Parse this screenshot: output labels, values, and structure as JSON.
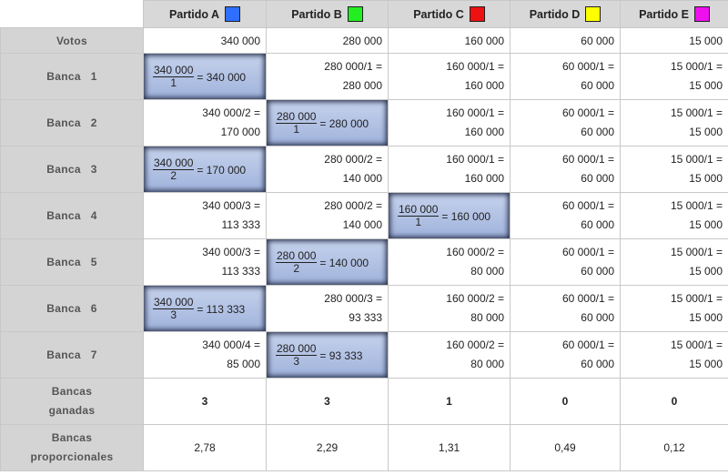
{
  "parties": [
    {
      "name": "Partido A",
      "color": "#2f6fff"
    },
    {
      "name": "Partido B",
      "color": "#22ee22"
    },
    {
      "name": "Partido C",
      "color": "#ee1111"
    },
    {
      "name": "Partido D",
      "color": "#ffff00"
    },
    {
      "name": "Partido E",
      "color": "#ee11ee"
    }
  ],
  "votes_label": "Votos",
  "votes": [
    "340 000",
    "280 000",
    "160 000",
    "60 000",
    "15 000"
  ],
  "rows": [
    {
      "label": "Banca   1",
      "cells": [
        {
          "win": true,
          "num": "340 000",
          "den": "1",
          "result": "= 340 000"
        },
        {
          "l1": "280 000/1 =",
          "l2": "280 000"
        },
        {
          "l1": "160 000/1 =",
          "l2": "160 000"
        },
        {
          "l1": "60 000/1 =",
          "l2": "60 000"
        },
        {
          "l1": "15 000/1 =",
          "l2": "15 000"
        }
      ]
    },
    {
      "label": "Banca   2",
      "cells": [
        {
          "l1": "340 000/2 =",
          "l2": "170 000"
        },
        {
          "win": true,
          "num": "280 000",
          "den": "1",
          "result": "= 280 000"
        },
        {
          "l1": "160 000/1 =",
          "l2": "160 000"
        },
        {
          "l1": "60 000/1 =",
          "l2": "60 000"
        },
        {
          "l1": "15 000/1 =",
          "l2": "15 000"
        }
      ]
    },
    {
      "label": "Banca   3",
      "cells": [
        {
          "win": true,
          "num": "340 000",
          "den": "2",
          "result": "= 170 000"
        },
        {
          "l1": "280 000/2 =",
          "l2": "140 000"
        },
        {
          "l1": "160 000/1 =",
          "l2": "160 000"
        },
        {
          "l1": "60 000/1 =",
          "l2": "60 000"
        },
        {
          "l1": "15 000/1 =",
          "l2": "15 000"
        }
      ]
    },
    {
      "label": "Banca   4",
      "cells": [
        {
          "l1": "340 000/3 =",
          "l2": "113 333"
        },
        {
          "l1": "280 000/2 =",
          "l2": "140 000"
        },
        {
          "win": true,
          "num": "160 000",
          "den": "1",
          "result": "= 160 000"
        },
        {
          "l1": "60 000/1 =",
          "l2": "60 000"
        },
        {
          "l1": "15 000/1 =",
          "l2": "15 000"
        }
      ]
    },
    {
      "label": "Banca   5",
      "cells": [
        {
          "l1": "340 000/3 =",
          "l2": "113 333"
        },
        {
          "win": true,
          "num": "280 000",
          "den": "2",
          "result": "= 140 000"
        },
        {
          "l1": "160 000/2 =",
          "l2": "80 000"
        },
        {
          "l1": "60 000/1 =",
          "l2": "60 000"
        },
        {
          "l1": "15 000/1 =",
          "l2": "15 000"
        }
      ]
    },
    {
      "label": "Banca   6",
      "cells": [
        {
          "win": true,
          "num": "340 000",
          "den": "3",
          "result": "= 113 333"
        },
        {
          "l1": "280 000/3 =",
          "l2": "93 333"
        },
        {
          "l1": "160 000/2 =",
          "l2": "80 000"
        },
        {
          "l1": "60 000/1 =",
          "l2": "60 000"
        },
        {
          "l1": "15 000/1 =",
          "l2": "15 000"
        }
      ]
    },
    {
      "label": "Banca   7",
      "cells": [
        {
          "l1": "340 000/4 =",
          "l2": "85 000"
        },
        {
          "win": true,
          "num": "280 000",
          "den": "3",
          "result": "= 93 333"
        },
        {
          "l1": "160 000/2 =",
          "l2": "80 000"
        },
        {
          "l1": "60 000/1 =",
          "l2": "60 000"
        },
        {
          "l1": "15 000/1 =",
          "l2": "15 000"
        }
      ]
    }
  ],
  "ganadas": {
    "label_l1": "Bancas",
    "label_l2": "ganadas",
    "values": [
      "3",
      "3",
      "1",
      "0",
      "0"
    ]
  },
  "proporcionales": {
    "label_l1": "Bancas",
    "label_l2": "proporcionales",
    "values": [
      "2,78",
      "2,29",
      "1,31",
      "0,49",
      "0,12"
    ]
  }
}
